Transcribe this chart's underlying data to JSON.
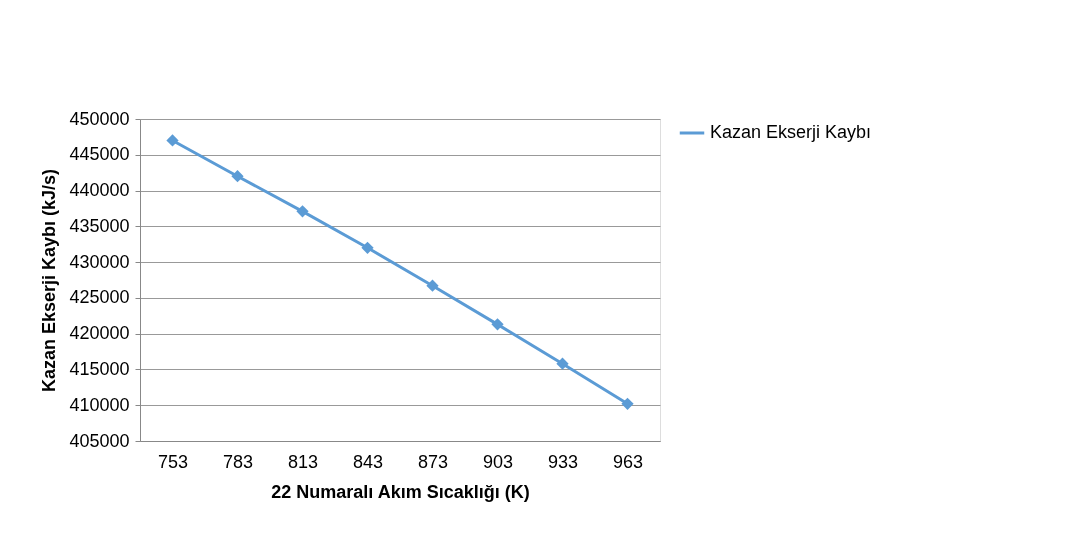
{
  "chart_data": {
    "type": "line",
    "xlabel": "22 Numaralı Akım Sıcaklığı (K)",
    "ylabel": "Kazan Ekserji Kaybı (kJ/s)",
    "categories": [
      "753",
      "783",
      "813",
      "843",
      "873",
      "903",
      "933",
      "963"
    ],
    "series": [
      {
        "name": "Kazan Ekserji Kaybı",
        "color": "#5b9bd5",
        "values": [
          447000,
          442000,
          437100,
          432000,
          426700,
          421300,
          415800,
          410200
        ]
      }
    ],
    "ylim": [
      405000,
      450000
    ],
    "yticks": [
      405000,
      410000,
      415000,
      420000,
      425000,
      430000,
      435000,
      440000,
      445000,
      450000
    ],
    "grid": "y",
    "legend": "right",
    "marker": "diamond",
    "line_style": "solid"
  }
}
